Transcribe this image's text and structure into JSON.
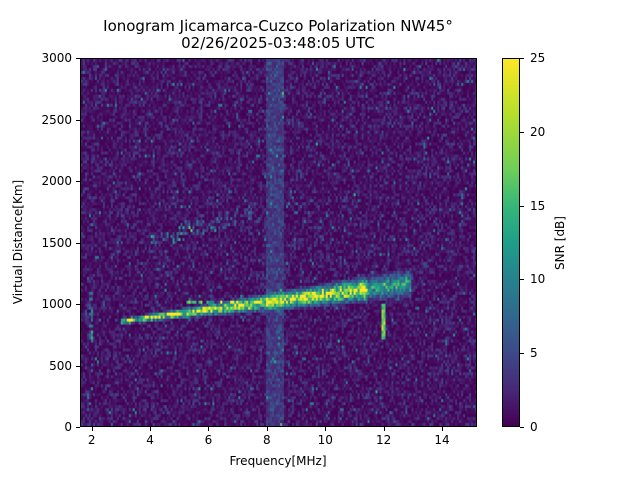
{
  "chart_data": {
    "type": "heatmap",
    "title": "Ionogram Jicamarca-Cuzco Polarization NW45°",
    "subtitle": "02/26/2025-03:48:05 UTC",
    "xlabel": "Frequency[MHz]",
    "ylabel": "Virtual Distance[Km]",
    "xlim": [
      1.6,
      15.2
    ],
    "ylim": [
      0,
      3000
    ],
    "x_ticks": [
      "2",
      "4",
      "6",
      "8",
      "10",
      "12",
      "14"
    ],
    "y_ticks": [
      "0",
      "500",
      "1000",
      "1500",
      "2000",
      "2500",
      "3000"
    ],
    "colorbar": {
      "label": "SNR [dB]",
      "range": [
        0,
        25
      ],
      "ticks": [
        "0",
        "5",
        "10",
        "15",
        "20",
        "25"
      ],
      "colormap": "viridis"
    },
    "features": [
      {
        "name": "main F-layer trace",
        "freq_start": 3.0,
        "freq_end": 13.0,
        "distance_start": 840,
        "distance_end": 1150,
        "snr_peak": 25
      },
      {
        "name": "secondary weak trace",
        "freq_start": 4.0,
        "freq_end": 7.5,
        "distance_start": 1450,
        "distance_end": 1750,
        "snr_peak": 15
      },
      {
        "name": "interference band",
        "freq_center": 8.3,
        "width_mhz": 0.6,
        "snr": 3
      },
      {
        "name": "vertical spike",
        "freq": 12.0,
        "distance_start": 700,
        "distance_end": 1000,
        "snr": 22
      }
    ]
  }
}
